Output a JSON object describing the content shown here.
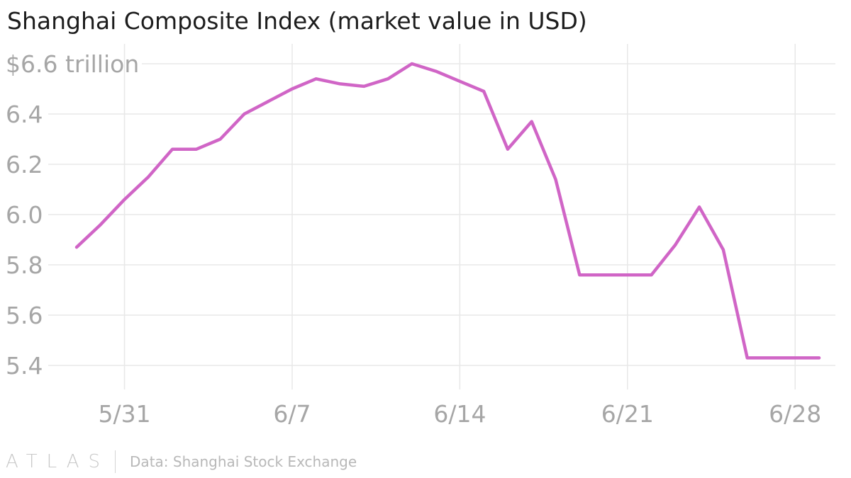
{
  "title": "Shanghai Composite Index (market value in USD)",
  "footer": {
    "logo": "ATLAS",
    "source": "Data: Shanghai Stock Exchange"
  },
  "colors": {
    "line": "#d065c6",
    "grid": "#e8e8e8",
    "tick_text": "#a6a6a6",
    "title_text": "#1d1d1d"
  },
  "chart_data": {
    "type": "line",
    "title": "Shanghai Composite Index (market value in USD)",
    "xlabel": "",
    "ylabel": "",
    "xlim": [
      "2013-05-29",
      "2013-06-29"
    ],
    "ylim": [
      5.35,
      6.63
    ],
    "grid": true,
    "x_ticks": [
      {
        "x": "2013-05-31",
        "label": "5/31"
      },
      {
        "x": "2013-06-07",
        "label": "6/7"
      },
      {
        "x": "2013-06-14",
        "label": "6/14"
      },
      {
        "x": "2013-06-21",
        "label": "6/21"
      },
      {
        "x": "2013-06-28",
        "label": "6/28"
      }
    ],
    "y_ticks": [
      {
        "value": 5.4,
        "label": "5.4"
      },
      {
        "value": 5.6,
        "label": "5.6"
      },
      {
        "value": 5.8,
        "label": "5.8"
      },
      {
        "value": 6.0,
        "label": "6.0"
      },
      {
        "value": 6.2,
        "label": "6.2"
      },
      {
        "value": 6.4,
        "label": "6.4"
      },
      {
        "value": 6.6,
        "label": "$6.6 trillion"
      }
    ],
    "series": [
      {
        "points": [
          {
            "x": "2013-05-29",
            "y": 5.87
          },
          {
            "x": "2013-05-30",
            "y": 5.96
          },
          {
            "x": "2013-05-31",
            "y": 6.06
          },
          {
            "x": "2013-06-01",
            "y": 6.15
          },
          {
            "x": "2013-06-02",
            "y": 6.26
          },
          {
            "x": "2013-06-03",
            "y": 6.26
          },
          {
            "x": "2013-06-04",
            "y": 6.3
          },
          {
            "x": "2013-06-05",
            "y": 6.4
          },
          {
            "x": "2013-06-06",
            "y": 6.45
          },
          {
            "x": "2013-06-07",
            "y": 6.5
          },
          {
            "x": "2013-06-08",
            "y": 6.54
          },
          {
            "x": "2013-06-09",
            "y": 6.52
          },
          {
            "x": "2013-06-10",
            "y": 6.51
          },
          {
            "x": "2013-06-11",
            "y": 6.54
          },
          {
            "x": "2013-06-12",
            "y": 6.6
          },
          {
            "x": "2013-06-13",
            "y": 6.57
          },
          {
            "x": "2013-06-14",
            "y": 6.53
          },
          {
            "x": "2013-06-15",
            "y": 6.49
          },
          {
            "x": "2013-06-16",
            "y": 6.26
          },
          {
            "x": "2013-06-17",
            "y": 6.37
          },
          {
            "x": "2013-06-18",
            "y": 6.14
          },
          {
            "x": "2013-06-19",
            "y": 5.76
          },
          {
            "x": "2013-06-20",
            "y": 5.76
          },
          {
            "x": "2013-06-21",
            "y": 5.76
          },
          {
            "x": "2013-06-22",
            "y": 5.76
          },
          {
            "x": "2013-06-23",
            "y": 5.88
          },
          {
            "x": "2013-06-24",
            "y": 6.03
          },
          {
            "x": "2013-06-25",
            "y": 5.86
          },
          {
            "x": "2013-06-26",
            "y": 5.43
          },
          {
            "x": "2013-06-27",
            "y": 5.43
          },
          {
            "x": "2013-06-28",
            "y": 5.43
          },
          {
            "x": "2013-06-29",
            "y": 5.43
          }
        ]
      }
    ]
  }
}
